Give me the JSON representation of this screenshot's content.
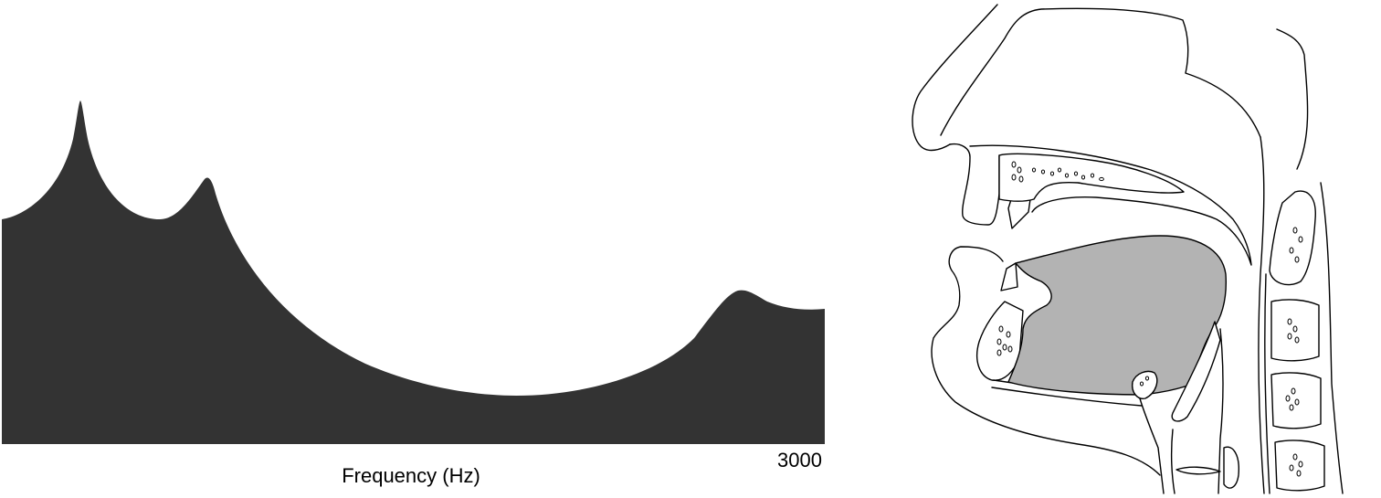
{
  "spectrum": {
    "xlabel": "Frequency (Hz)",
    "x_max_tick": "3000",
    "fill_color": "#333333"
  },
  "vocal_tract": {
    "tongue_color": "#b3b3b3",
    "line_color": "#000000"
  }
}
